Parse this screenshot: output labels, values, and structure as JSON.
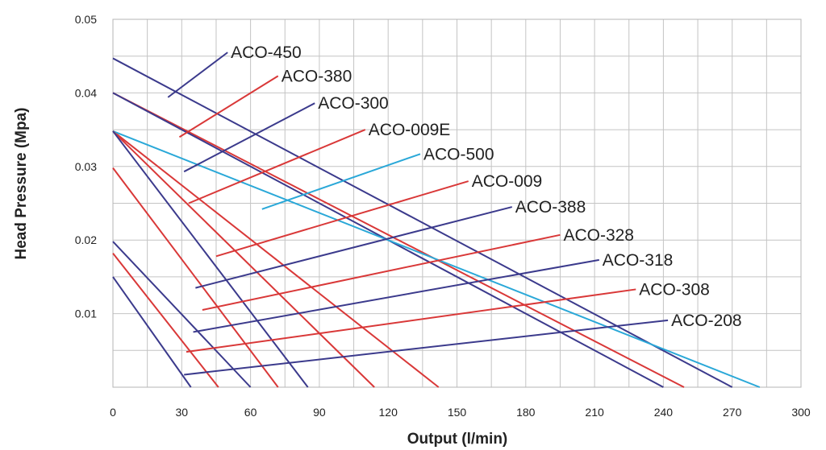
{
  "chart_data": {
    "type": "line",
    "xlabel": "Output (l/min)",
    "ylabel": "Head Pressure (Mpa)",
    "xlim": [
      0,
      300
    ],
    "ylim": [
      0,
      0.05
    ],
    "x_ticks": [
      "0",
      "30",
      "60",
      "90",
      "120",
      "150",
      "180",
      "210",
      "240",
      "270",
      "300"
    ],
    "y_ticks": [
      "0.01",
      "0.02",
      "0.03",
      "0.04",
      "0.05"
    ],
    "grid": true,
    "legend": "callout labels with leader lines",
    "series": [
      {
        "name": "ACO-450",
        "color": "#3b3a8c",
        "x": [
          0,
          270
        ],
        "y": [
          0.0447,
          0
        ],
        "label_at": [
          50,
          0.0455
        ],
        "leader_from": [
          24,
          0.0394
        ]
      },
      {
        "name": "ACO-380",
        "color": "#d93838",
        "x": [
          0,
          249
        ],
        "y": [
          0.04,
          0
        ],
        "label_at": [
          72,
          0.0423
        ],
        "leader_from": [
          29,
          0.034
        ]
      },
      {
        "name": "ACO-300",
        "color": "#3b3a8c",
        "x": [
          0,
          240
        ],
        "y": [
          0.04,
          0
        ],
        "label_at": [
          88,
          0.0386
        ],
        "leader_from": [
          31,
          0.0293
        ]
      },
      {
        "name": "ACO-009E",
        "color": "#d93838",
        "x": [
          0,
          142
        ],
        "y": [
          0.0348,
          0
        ],
        "label_at": [
          110,
          0.035
        ],
        "leader_from": [
          33,
          0.025
        ]
      },
      {
        "name": "ACO-500",
        "color": "#2aa8d8",
        "x": [
          0,
          282
        ],
        "y": [
          0.0348,
          0
        ],
        "label_at": [
          134,
          0.0317
        ],
        "leader_from": [
          65,
          0.0242
        ]
      },
      {
        "name": "ACO-009",
        "color": "#d93838",
        "x": [
          0,
          114
        ],
        "y": [
          0.0348,
          0
        ],
        "label_at": [
          155,
          0.028
        ],
        "leader_from": [
          45,
          0.0178
        ]
      },
      {
        "name": "ACO-388",
        "color": "#3b3a8c",
        "x": [
          0,
          85
        ],
        "y": [
          0.0348,
          0
        ],
        "label_at": [
          174,
          0.0245
        ],
        "leader_from": [
          36,
          0.0135
        ]
      },
      {
        "name": "ACO-328",
        "color": "#d93838",
        "x": [
          0,
          72
        ],
        "y": [
          0.0298,
          0
        ],
        "label_at": [
          195,
          0.0207
        ],
        "leader_from": [
          39,
          0.0105
        ]
      },
      {
        "name": "ACO-318",
        "color": "#3b3a8c",
        "x": [
          0,
          60
        ],
        "y": [
          0.0198,
          0
        ],
        "label_at": [
          212,
          0.0173
        ],
        "leader_from": [
          35,
          0.0075
        ]
      },
      {
        "name": "ACO-308",
        "color": "#d93838",
        "x": [
          0,
          46
        ],
        "y": [
          0.0182,
          0
        ],
        "label_at": [
          228,
          0.0133
        ],
        "leader_from": [
          32,
          0.0048
        ]
      },
      {
        "name": "ACO-208",
        "color": "#3b3a8c",
        "x": [
          0,
          34
        ],
        "y": [
          0.015,
          0
        ],
        "label_at": [
          242,
          0.0091
        ],
        "leader_from": [
          31,
          0.0017
        ]
      }
    ]
  }
}
